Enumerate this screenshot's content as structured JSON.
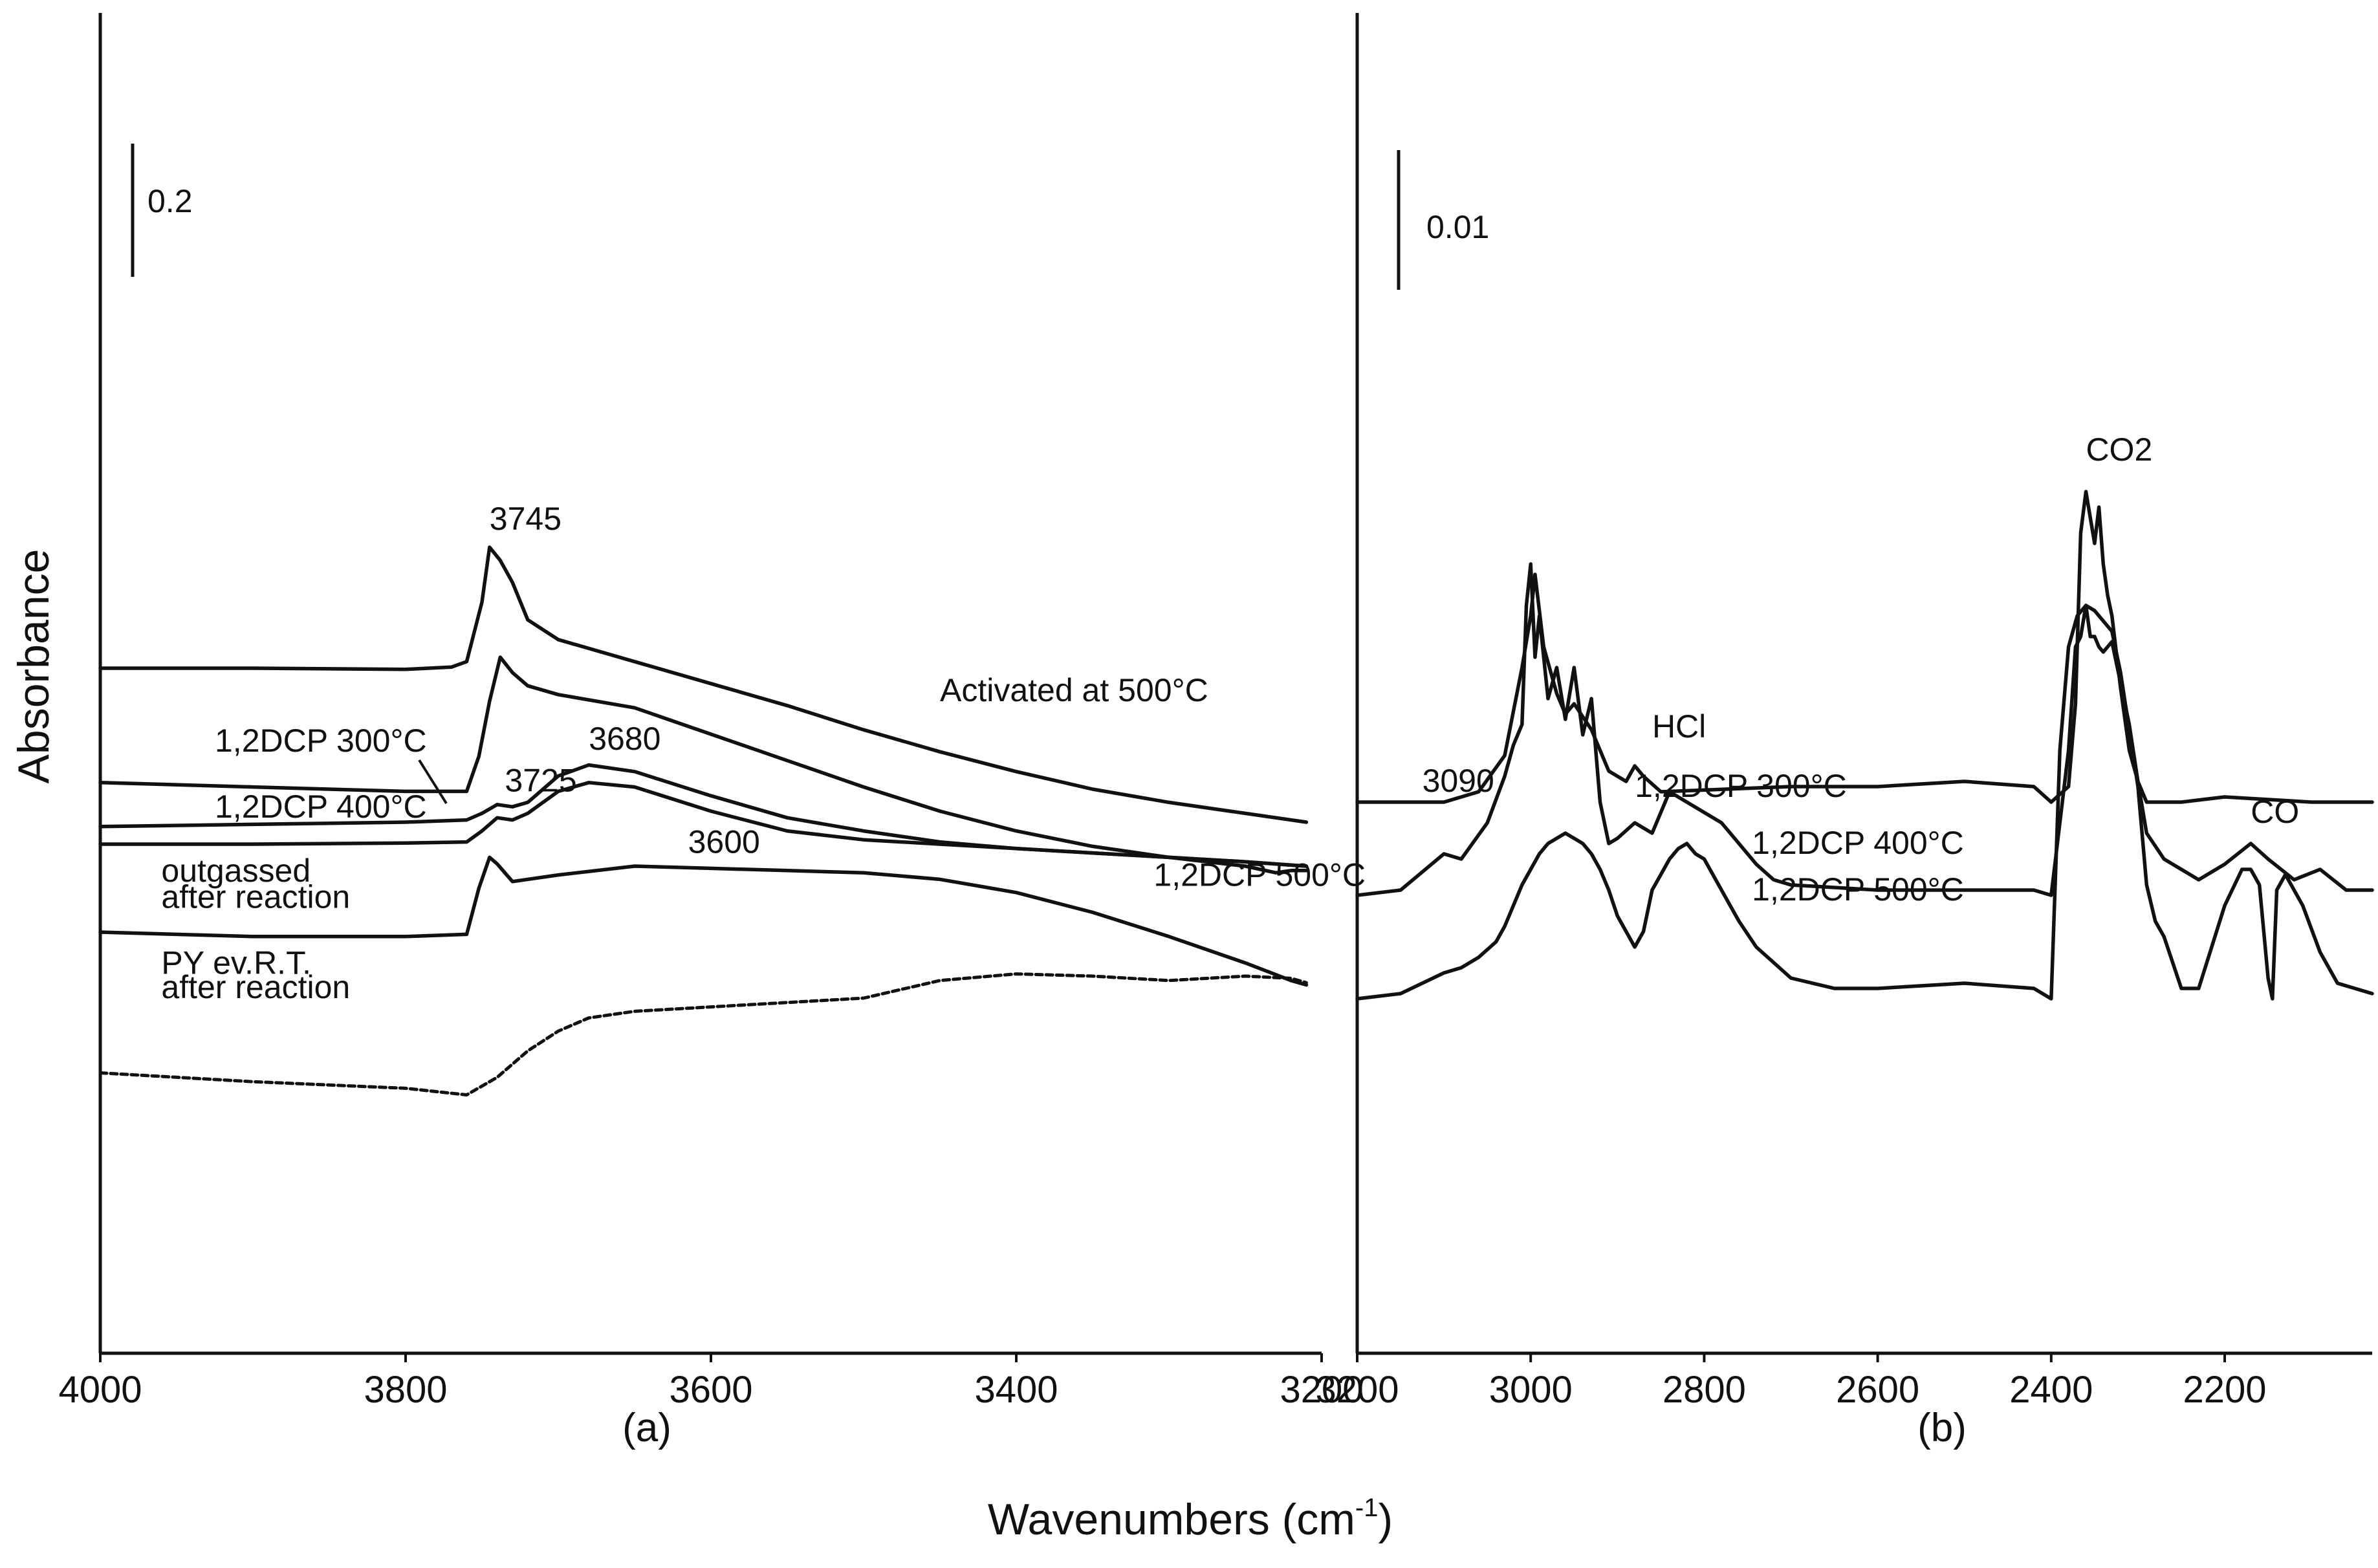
{
  "chart_data": [
    {
      "panel": "a",
      "type": "line",
      "panel_label": "(a)",
      "xlim": [
        4000,
        3200
      ],
      "xticks": [
        4000,
        3800,
        3600,
        3400,
        3200
      ],
      "scale_bar": "0.2",
      "series": [
        {
          "name": "Activated at 500°C",
          "x": [
            4000,
            3900,
            3800,
            3770,
            3760,
            3750,
            3745,
            3738,
            3730,
            3720,
            3700,
            3650,
            3600,
            3550,
            3500,
            3450,
            3400,
            3350,
            3300,
            3250,
            3210
          ],
          "y": [
            1.3,
            1.3,
            1.295,
            1.305,
            1.33,
            1.6,
            1.85,
            1.79,
            1.69,
            1.52,
            1.43,
            1.33,
            1.23,
            1.13,
            1.02,
            0.92,
            0.83,
            0.75,
            0.69,
            0.64,
            0.6
          ]
        },
        {
          "name": "1,2DCP 300°C",
          "x": [
            4000,
            3900,
            3800,
            3760,
            3752,
            3745,
            3738,
            3730,
            3720,
            3700,
            3650,
            3600,
            3550,
            3500,
            3450,
            3400,
            3350,
            3300,
            3250,
            3230,
            3220,
            3210
          ],
          "y": [
            0.78,
            0.76,
            0.74,
            0.74,
            0.9,
            1.15,
            1.35,
            1.28,
            1.22,
            1.18,
            1.12,
            1.0,
            0.88,
            0.76,
            0.65,
            0.56,
            0.49,
            0.44,
            0.4,
            0.37,
            0.38,
            0.38
          ]
        },
        {
          "name": "1,2DCP 400°C",
          "x": [
            4000,
            3900,
            3800,
            3760,
            3750,
            3740,
            3730,
            3720,
            3700,
            3680,
            3650,
            3600,
            3550,
            3500,
            3450,
            3400,
            3350,
            3300,
            3250,
            3210
          ],
          "y": [
            0.58,
            0.59,
            0.6,
            0.61,
            0.64,
            0.68,
            0.67,
            0.69,
            0.81,
            0.86,
            0.83,
            0.72,
            0.62,
            0.56,
            0.51,
            0.48,
            0.46,
            0.44,
            0.42,
            0.4
          ]
        },
        {
          "name": "1,2DCP 500°C",
          "x": [
            4000,
            3900,
            3800,
            3760,
            3750,
            3740,
            3730,
            3720,
            3700,
            3680,
            3650,
            3600,
            3550,
            3500,
            3450,
            3400,
            3350,
            3300,
            3250,
            3210
          ],
          "y": [
            0.5,
            0.5,
            0.505,
            0.51,
            0.56,
            0.62,
            0.61,
            0.64,
            0.74,
            0.78,
            0.76,
            0.65,
            0.56,
            0.52,
            0.5,
            0.48,
            0.46,
            0.44,
            0.42,
            0.4
          ]
        },
        {
          "name": "outgassed after reaction",
          "x": [
            4000,
            3900,
            3800,
            3760,
            3752,
            3745,
            3740,
            3730,
            3700,
            3650,
            3600,
            3550,
            3500,
            3450,
            3400,
            3350,
            3300,
            3250,
            3220,
            3210
          ],
          "y": [
            0.1,
            0.08,
            0.08,
            0.09,
            0.3,
            0.44,
            0.41,
            0.33,
            0.36,
            0.4,
            0.39,
            0.38,
            0.37,
            0.34,
            0.28,
            0.19,
            0.08,
            -0.04,
            -0.12,
            -0.14
          ]
        },
        {
          "name": "PY ev.R.T. after reaction",
          "x": [
            4000,
            3900,
            3800,
            3760,
            3740,
            3720,
            3700,
            3680,
            3650,
            3600,
            3550,
            3500,
            3450,
            3400,
            3350,
            3300,
            3250,
            3220,
            3210
          ],
          "y": [
            -0.54,
            -0.58,
            -0.61,
            -0.64,
            -0.56,
            -0.44,
            -0.35,
            -0.29,
            -0.26,
            -0.24,
            -0.22,
            -0.2,
            -0.12,
            -0.09,
            -0.1,
            -0.12,
            -0.1,
            -0.11,
            -0.13
          ]
        }
      ],
      "annotations": [
        {
          "text": "3745",
          "x": 3745,
          "y": 1.93
        },
        {
          "text": "3680",
          "x": 3680,
          "y": 0.93
        },
        {
          "text": "3725",
          "x": 3735,
          "y": 0.74
        },
        {
          "text": "3600",
          "x": 3615,
          "y": 0.46
        },
        {
          "text": "Activated at 500°C",
          "x": 3450,
          "y": 1.15
        },
        {
          "text": "1,2DCP 300°C",
          "x": 3925,
          "y": 0.92
        },
        {
          "text": "1,2DCP 400°C",
          "x": 3925,
          "y": 0.62
        },
        {
          "text": "1,2DCP 500°C",
          "x": 3310,
          "y": 0.31
        },
        {
          "text": "outgassed",
          "x": 3960,
          "y": 0.33
        },
        {
          "text": "after reaction",
          "x": 3960,
          "y": 0.21
        },
        {
          "text": "PY ev.R.T.",
          "x": 3960,
          "y": -0.09
        },
        {
          "text": "after reaction",
          "x": 3960,
          "y": -0.2
        }
      ]
    },
    {
      "panel": "b",
      "type": "line",
      "panel_label": "(b)",
      "xlim": [
        3200,
        2030
      ],
      "xticks": [
        3200,
        3000,
        2800,
        2600,
        2400,
        2200
      ],
      "scale_bar": "0.01",
      "series": [
        {
          "name": "1,2DCP 300°C",
          "x": [
            3200,
            3100,
            3060,
            3030,
            3010,
            3000,
            2995,
            2985,
            2970,
            2960,
            2950,
            2930,
            2910,
            2890,
            2880,
            2870,
            2850,
            2700,
            2600,
            2500,
            2420,
            2400,
            2380,
            2372,
            2366,
            2360,
            2355,
            2350,
            2345,
            2340,
            2335,
            2330,
            2320,
            2310,
            2300,
            2290,
            2250,
            2200,
            2100,
            2030
          ],
          "y": [
            2.0,
            2.0,
            2.2,
            2.9,
            4.6,
            5.6,
            6.4,
            5.0,
            4.1,
            3.7,
            3.9,
            3.4,
            2.6,
            2.4,
            2.7,
            2.5,
            2.2,
            2.3,
            2.3,
            2.4,
            2.3,
            2.0,
            2.3,
            3.9,
            7.2,
            8.0,
            7.5,
            7.0,
            7.7,
            6.6,
            6.0,
            5.6,
            4.2,
            3.0,
            2.4,
            2.0,
            2.0,
            2.1,
            2.0,
            2.0
          ]
        },
        {
          "name": "1,2DCP 400°C",
          "x": [
            3200,
            3150,
            3100,
            3080,
            3050,
            3030,
            3020,
            3010,
            3005,
            3000,
            2995,
            2990,
            2980,
            2970,
            2960,
            2950,
            2940,
            2930,
            2920,
            2910,
            2900,
            2880,
            2860,
            2840,
            2820,
            2800,
            2780,
            2760,
            2740,
            2720,
            2700,
            2600,
            2500,
            2420,
            2400,
            2380,
            2372,
            2366,
            2360,
            2355,
            2350,
            2345,
            2340,
            2330,
            2310,
            2300,
            2290,
            2270,
            2250,
            2230,
            2200,
            2170,
            2150,
            2120,
            2090,
            2060,
            2030
          ],
          "y": [
            0.2,
            0.3,
            1.0,
            0.9,
            1.6,
            2.5,
            3.1,
            3.5,
            5.8,
            6.6,
            4.8,
            5.6,
            4.0,
            4.6,
            3.6,
            4.6,
            3.3,
            4.0,
            2.0,
            1.2,
            1.3,
            1.6,
            1.4,
            2.2,
            2.0,
            1.8,
            1.6,
            1.2,
            0.8,
            0.5,
            0.4,
            0.3,
            0.3,
            0.3,
            0.2,
            3.0,
            5.0,
            5.2,
            5.8,
            5.2,
            5.2,
            5.0,
            4.9,
            5.1,
            3.5,
            2.4,
            1.4,
            0.9,
            0.7,
            0.5,
            0.8,
            1.2,
            0.9,
            0.5,
            0.7,
            0.3,
            0.3
          ]
        },
        {
          "name": "1,2DCP 500°C",
          "x": [
            3200,
            3150,
            3100,
            3080,
            3060,
            3040,
            3030,
            3020,
            3010,
            3000,
            2990,
            2980,
            2970,
            2960,
            2950,
            2940,
            2930,
            2920,
            2910,
            2900,
            2880,
            2870,
            2860,
            2850,
            2840,
            2830,
            2820,
            2810,
            2800,
            2790,
            2780,
            2770,
            2760,
            2740,
            2720,
            2700,
            2650,
            2600,
            2500,
            2420,
            2400,
            2390,
            2380,
            2370,
            2360,
            2350,
            2340,
            2330,
            2320,
            2310,
            2300,
            2290,
            2280,
            2270,
            2250,
            2230,
            2200,
            2180,
            2170,
            2160,
            2150,
            2145,
            2140,
            2130,
            2120,
            2110,
            2090,
            2070,
            2050,
            2030
          ],
          "y": [
            -1.8,
            -1.7,
            -1.3,
            -1.2,
            -1.0,
            -0.7,
            -0.4,
            0.0,
            0.4,
            0.7,
            1.0,
            1.2,
            1.3,
            1.4,
            1.3,
            1.2,
            1.0,
            0.7,
            0.3,
            -0.2,
            -0.8,
            -0.5,
            0.3,
            0.6,
            0.9,
            1.1,
            1.2,
            1.0,
            0.9,
            0.6,
            0.3,
            0.0,
            -0.3,
            -0.8,
            -1.1,
            -1.4,
            -1.6,
            -1.6,
            -1.5,
            -1.6,
            -1.8,
            3.0,
            5.0,
            5.6,
            5.8,
            5.7,
            5.5,
            5.3,
            4.5,
            3.4,
            2.3,
            0.4,
            -0.3,
            -0.6,
            -1.6,
            -1.6,
            0.0,
            0.7,
            0.7,
            0.4,
            -1.4,
            -1.8,
            0.3,
            0.6,
            0.3,
            0.0,
            -0.9,
            -1.5,
            -1.6,
            -1.7
          ]
        }
      ],
      "annotations": [
        {
          "text": "CO2",
          "x": 2360,
          "y": 8.6
        },
        {
          "text": "3090",
          "x": 3125,
          "y": 2.2
        },
        {
          "text": "1,2DCP 300°C",
          "x": 2880,
          "y": 2.1
        },
        {
          "text": "HCl",
          "x": 2860,
          "y": 3.25
        },
        {
          "text": "1,2DCP 400°C",
          "x": 2745,
          "y": 1.0
        },
        {
          "text": "CO",
          "x": 2170,
          "y": 1.6
        },
        {
          "text": "1,2DCP 500°C",
          "x": 2745,
          "y": 0.1
        }
      ]
    }
  ],
  "figure": {
    "ylabel": "Absorbance",
    "xlabel_main": "Wavenumbers  (cm",
    "xlabel_sup": "-1",
    "xlabel_close": ")"
  }
}
